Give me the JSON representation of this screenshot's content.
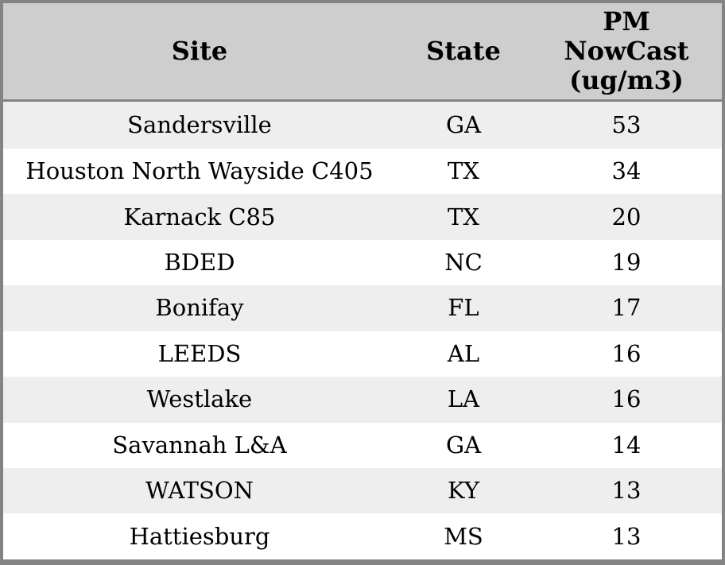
{
  "colors": {
    "header_bg": "#cecece",
    "row_stripe_bg": "#eeeeee",
    "row_bg": "#ffffff",
    "border": "#848484",
    "text": "#000000"
  },
  "table": {
    "columns": [
      {
        "id": "site",
        "label": "Site"
      },
      {
        "id": "state",
        "label": "State"
      },
      {
        "id": "pm_nowcast",
        "label": "PM NowCast (ug/m3)"
      }
    ],
    "rows": [
      {
        "site": "Sandersville",
        "state": "GA",
        "pm_nowcast": "53"
      },
      {
        "site": "Houston North Wayside C405",
        "state": "TX",
        "pm_nowcast": "34"
      },
      {
        "site": "Karnack C85",
        "state": "TX",
        "pm_nowcast": "20"
      },
      {
        "site": "BDED",
        "state": "NC",
        "pm_nowcast": "19"
      },
      {
        "site": "Bonifay",
        "state": "FL",
        "pm_nowcast": "17"
      },
      {
        "site": "LEEDS",
        "state": "AL",
        "pm_nowcast": "16"
      },
      {
        "site": "Westlake",
        "state": "LA",
        "pm_nowcast": "16"
      },
      {
        "site": "Savannah L&A",
        "state": "GA",
        "pm_nowcast": "14"
      },
      {
        "site": "WATSON",
        "state": "KY",
        "pm_nowcast": "13"
      },
      {
        "site": "Hattiesburg",
        "state": "MS",
        "pm_nowcast": "13"
      }
    ]
  }
}
